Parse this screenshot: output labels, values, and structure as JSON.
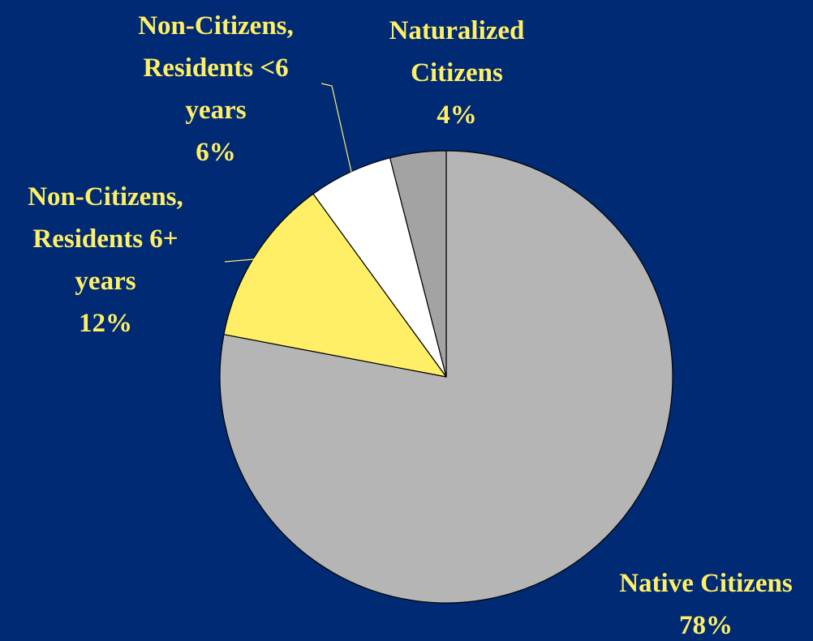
{
  "colors": {
    "background": "#002a73",
    "label_text": "#ffef66",
    "leader_line": "#ffef66",
    "slice_outline": "#000000"
  },
  "chart_data": {
    "type": "pie",
    "start_angle_deg": 0,
    "direction": "clockwise",
    "legend": "none",
    "slices": [
      {
        "label_lines": [
          "Native Citizens"
        ],
        "value": 78,
        "value_label": "78%",
        "color": "#b5b5b5"
      },
      {
        "label_lines": [
          "Non-Citizens,",
          "Residents 6+",
          "years"
        ],
        "value": 12,
        "value_label": "12%",
        "color": "#ffef66"
      },
      {
        "label_lines": [
          "Non-Citizens,",
          "Residents <6",
          "years"
        ],
        "value": 6,
        "value_label": "6%",
        "color": "#ffffff"
      },
      {
        "label_lines": [
          "Naturalized",
          "Citizens"
        ],
        "value": 4,
        "value_label": "4%",
        "color": "#a3a3a3"
      }
    ]
  }
}
